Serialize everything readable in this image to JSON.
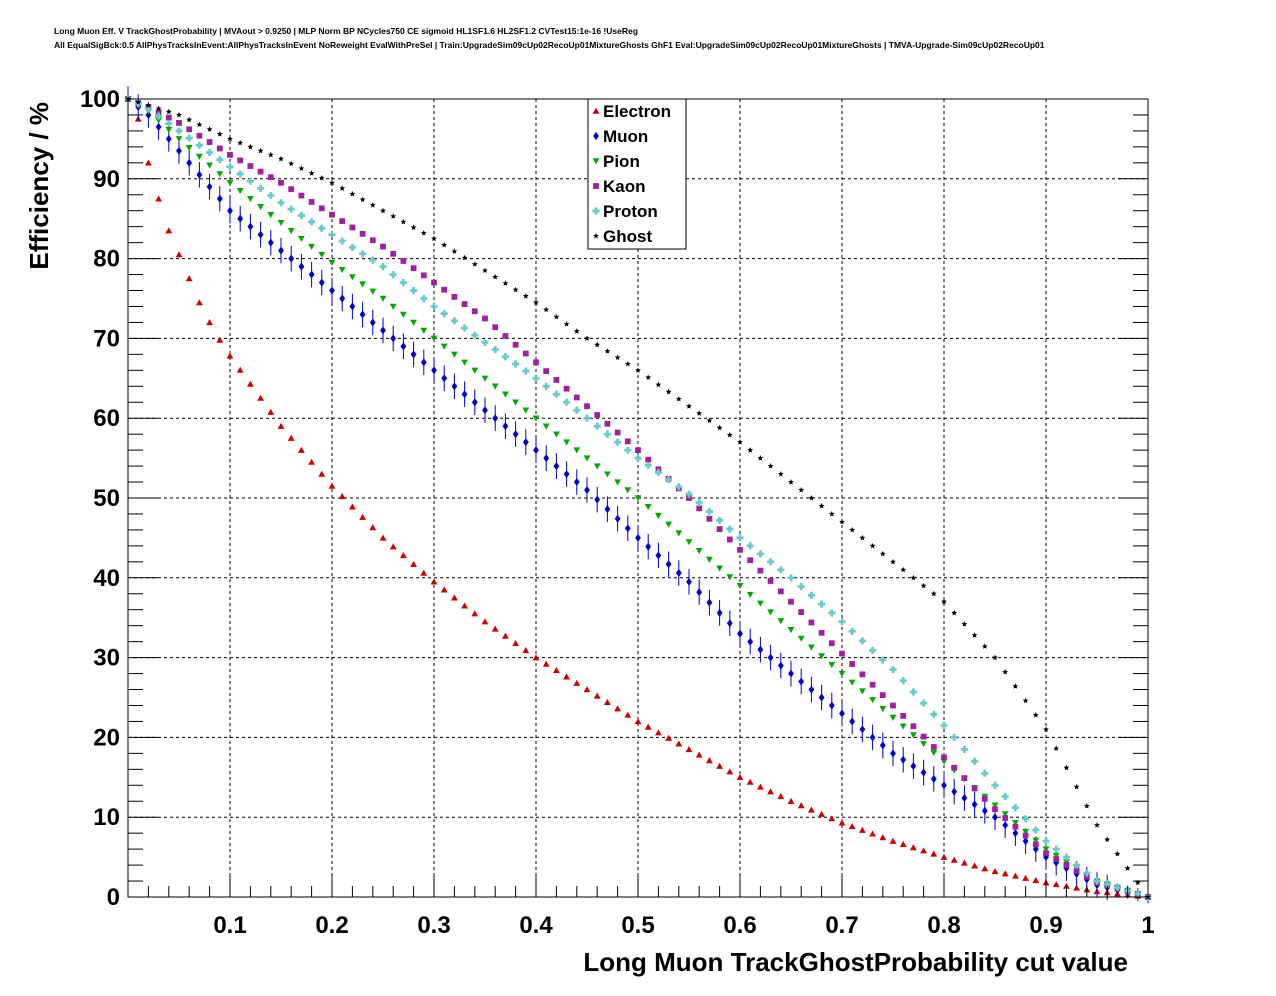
{
  "title_lines": [
    "Long Muon Eff. V TrackGhostProbability | MVAout > 0.9250 | MLP Norm BP NCycles750 CE sigmoid HL1SF1.6 HL2SF1.2 CVTest15:1e-16 !UseReg",
    "All EqualSigBck:0.5 AllPhysTracksInEvent:AllPhysTracksInEvent NoReweight EvalWithPreSel | Train:UpgradeSim09cUp02RecoUp01MixtureGhosts GhF1 Eval:UpgradeSim09cUp02RecoUp01MixtureGhosts | TMVA-Upgrade-Sim09cUp02RecoUp01"
  ],
  "chart_data": {
    "type": "scatter",
    "xlabel": "Long Muon TrackGhostProbability cut value",
    "ylabel": "Efficiency / %",
    "xlim": [
      0,
      1
    ],
    "ylim": [
      0,
      100
    ],
    "xticks": [
      "0.1",
      "0.2",
      "0.3",
      "0.4",
      "0.5",
      "0.6",
      "0.7",
      "0.8",
      "0.9",
      "1"
    ],
    "yticks": [
      "0",
      "10",
      "20",
      "30",
      "40",
      "50",
      "60",
      "70",
      "80",
      "90",
      "100"
    ],
    "grid": true,
    "legend_position": "top-center",
    "x_points": {
      "start": 0.0,
      "step": 0.01,
      "count": 101
    },
    "series": [
      {
        "name": "Electron",
        "color": "#cc0000",
        "marker": "triangle-up",
        "error": 0.2,
        "anchors": [
          [
            0,
            100
          ],
          [
            0.01,
            97.5
          ],
          [
            0.02,
            92
          ],
          [
            0.03,
            87.5
          ],
          [
            0.04,
            83.5
          ],
          [
            0.05,
            80.5
          ],
          [
            0.06,
            77.5
          ],
          [
            0.07,
            74.5
          ],
          [
            0.08,
            72
          ],
          [
            0.09,
            69.8
          ],
          [
            0.1,
            67.8
          ],
          [
            0.15,
            59
          ],
          [
            0.2,
            51.5
          ],
          [
            0.25,
            45
          ],
          [
            0.3,
            39.5
          ],
          [
            0.35,
            34.5
          ],
          [
            0.4,
            30
          ],
          [
            0.45,
            26
          ],
          [
            0.5,
            22
          ],
          [
            0.55,
            18.5
          ],
          [
            0.6,
            15
          ],
          [
            0.65,
            12
          ],
          [
            0.7,
            9.3
          ],
          [
            0.75,
            7
          ],
          [
            0.8,
            5
          ],
          [
            0.85,
            3.2
          ],
          [
            0.9,
            1.8
          ],
          [
            0.95,
            0.7
          ],
          [
            1,
            0
          ]
        ]
      },
      {
        "name": "Muon",
        "color": "#0000cc",
        "marker": "diamond",
        "error": 1.6,
        "anchors": [
          [
            0,
            100
          ],
          [
            0.02,
            98
          ],
          [
            0.05,
            93.5
          ],
          [
            0.1,
            86
          ],
          [
            0.15,
            81
          ],
          [
            0.2,
            76
          ],
          [
            0.25,
            71
          ],
          [
            0.3,
            66
          ],
          [
            0.35,
            61
          ],
          [
            0.4,
            56
          ],
          [
            0.45,
            51
          ],
          [
            0.5,
            45
          ],
          [
            0.55,
            39.5
          ],
          [
            0.6,
            33
          ],
          [
            0.65,
            28
          ],
          [
            0.7,
            23
          ],
          [
            0.75,
            18
          ],
          [
            0.8,
            14
          ],
          [
            0.85,
            10
          ],
          [
            0.9,
            5
          ],
          [
            0.95,
            1.5
          ],
          [
            1,
            0
          ]
        ]
      },
      {
        "name": "Pion",
        "color": "#00aa00",
        "marker": "triangle-down",
        "error": 0.3,
        "anchors": [
          [
            0,
            100
          ],
          [
            0.02,
            98.5
          ],
          [
            0.05,
            95
          ],
          [
            0.1,
            89.5
          ],
          [
            0.15,
            84.5
          ],
          [
            0.2,
            79.5
          ],
          [
            0.25,
            75
          ],
          [
            0.3,
            70
          ],
          [
            0.35,
            65
          ],
          [
            0.4,
            60
          ],
          [
            0.45,
            55
          ],
          [
            0.5,
            50
          ],
          [
            0.55,
            44.5
          ],
          [
            0.6,
            39
          ],
          [
            0.65,
            33.5
          ],
          [
            0.7,
            28
          ],
          [
            0.75,
            22.5
          ],
          [
            0.8,
            17
          ],
          [
            0.85,
            11.5
          ],
          [
            0.9,
            6
          ],
          [
            0.95,
            2
          ],
          [
            1,
            0
          ]
        ]
      },
      {
        "name": "Kaon",
        "color": "#a020a0",
        "marker": "square",
        "error": 0.3,
        "anchors": [
          [
            0,
            100
          ],
          [
            0.02,
            99
          ],
          [
            0.05,
            97
          ],
          [
            0.1,
            93
          ],
          [
            0.15,
            89.5
          ],
          [
            0.2,
            85.5
          ],
          [
            0.25,
            81.5
          ],
          [
            0.3,
            77
          ],
          [
            0.35,
            72.5
          ],
          [
            0.4,
            67
          ],
          [
            0.45,
            61.5
          ],
          [
            0.5,
            56
          ],
          [
            0.55,
            50
          ],
          [
            0.6,
            43.5
          ],
          [
            0.65,
            37
          ],
          [
            0.7,
            30.5
          ],
          [
            0.75,
            24
          ],
          [
            0.8,
            17.5
          ],
          [
            0.85,
            11
          ],
          [
            0.9,
            5.5
          ],
          [
            0.95,
            1.8
          ],
          [
            1,
            0
          ]
        ]
      },
      {
        "name": "Proton",
        "color": "#66cccc",
        "marker": "cross",
        "error": 0.3,
        "anchors": [
          [
            0,
            100
          ],
          [
            0.02,
            98.8
          ],
          [
            0.05,
            96
          ],
          [
            0.1,
            91.5
          ],
          [
            0.15,
            87
          ],
          [
            0.2,
            83
          ],
          [
            0.25,
            79
          ],
          [
            0.3,
            74
          ],
          [
            0.35,
            69.5
          ],
          [
            0.4,
            65
          ],
          [
            0.45,
            60
          ],
          [
            0.5,
            55
          ],
          [
            0.55,
            50.5
          ],
          [
            0.6,
            45
          ],
          [
            0.65,
            40
          ],
          [
            0.7,
            34.5
          ],
          [
            0.75,
            28.5
          ],
          [
            0.8,
            21.5
          ],
          [
            0.85,
            14
          ],
          [
            0.9,
            7
          ],
          [
            0.95,
            2
          ],
          [
            1,
            0
          ]
        ]
      },
      {
        "name": "Ghost",
        "color": "#000000",
        "marker": "star",
        "error": 0.2,
        "anchors": [
          [
            0,
            100
          ],
          [
            0.05,
            98
          ],
          [
            0.1,
            95
          ],
          [
            0.15,
            92.5
          ],
          [
            0.2,
            89.5
          ],
          [
            0.25,
            86
          ],
          [
            0.3,
            82.5
          ],
          [
            0.35,
            78.5
          ],
          [
            0.4,
            74.5
          ],
          [
            0.45,
            70
          ],
          [
            0.5,
            66
          ],
          [
            0.55,
            61.5
          ],
          [
            0.6,
            57
          ],
          [
            0.65,
            52
          ],
          [
            0.7,
            47
          ],
          [
            0.75,
            42
          ],
          [
            0.8,
            37
          ],
          [
            0.85,
            30
          ],
          [
            0.9,
            21
          ],
          [
            0.95,
            9
          ],
          [
            1,
            0
          ]
        ]
      }
    ]
  }
}
